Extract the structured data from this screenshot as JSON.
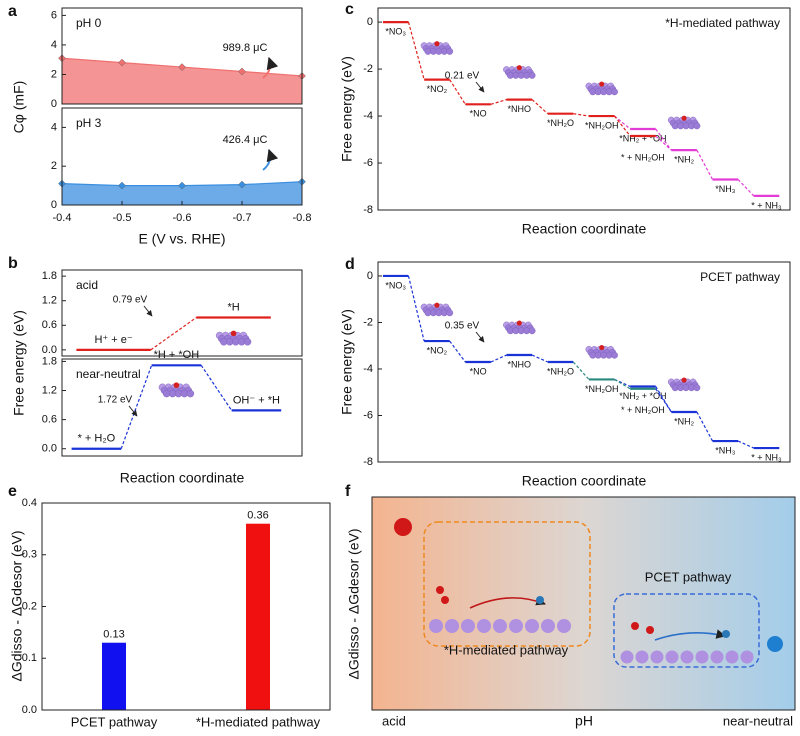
{
  "chart_data": [
    {
      "type": "area",
      "panel_label": "a",
      "title": "pH 0",
      "ylabel": "Cφ (mF)",
      "x": [
        -0.4,
        -0.5,
        -0.6,
        -0.7,
        -0.8
      ],
      "values": [
        3.1,
        2.8,
        2.5,
        2.2,
        1.9
      ],
      "color": "#f07070",
      "xlim": [
        -0.4,
        -0.8
      ],
      "ylim": [
        0,
        6.5
      ],
      "yticks": [
        0,
        2,
        4,
        6
      ],
      "annotation": "989.8 μC"
    },
    {
      "type": "area",
      "title": "pH 3",
      "xlabel": "E (V vs. RHE)",
      "x": [
        -0.4,
        -0.5,
        -0.6,
        -0.7,
        -0.8
      ],
      "values": [
        1.1,
        1.0,
        1.0,
        1.05,
        1.2
      ],
      "color": "#3b8fe0",
      "xlim": [
        -0.4,
        -0.8
      ],
      "xticks": [
        -0.4,
        -0.5,
        -0.6,
        -0.7,
        -0.8
      ],
      "ylim": [
        0,
        5
      ],
      "yticks": [
        0,
        2,
        4
      ],
      "annotation": "426.4 μC"
    },
    {
      "type": "energy",
      "panel_label": "b",
      "title": "acid",
      "ylabel": "Free energy (eV)",
      "ylim": [
        -0.15,
        1.95
      ],
      "yticks": [
        {
          "value": 0,
          "label": "0.0"
        },
        0.6,
        1.2,
        1.8
      ],
      "annotation": "0.79 eV",
      "steps": [
        [
          {
            "label": "H⁺ + e⁻",
            "value": 0,
            "color": "#e0201c"
          }
        ],
        [
          {
            "label": "*H",
            "value": 0.79,
            "color": "#e0201c"
          }
        ]
      ]
    },
    {
      "type": "energy",
      "title": "near-neutral",
      "xlabel": "Reaction coordinate",
      "ylim": [
        -0.15,
        1.85
      ],
      "yticks": [
        {
          "value": 0,
          "label": "0.0"
        },
        0.6,
        1.2,
        1.8
      ],
      "annotation": "1.72 eV",
      "steps": [
        [
          {
            "label": "* + H₂O",
            "value": 0,
            "color": "#1a33d6"
          }
        ],
        [
          {
            "label": "*H + *OH",
            "value": 1.72,
            "color": "#1a33d6"
          }
        ],
        [
          {
            "label": "OH⁻ + *H",
            "value": 0.79,
            "color": "#1a33d6"
          }
        ]
      ]
    },
    {
      "type": "energy",
      "panel_label": "c",
      "title": "*H-mediated pathway",
      "ylabel": "Free energy (eV)",
      "xlabel": "Reaction coordinate",
      "ylim": [
        -8,
        0.6
      ],
      "yticks": [
        0,
        -2,
        -4,
        -6,
        -8
      ],
      "annotation": "0.21 eV",
      "steps": [
        [
          {
            "label": "*NO₃",
            "value": 0,
            "color": "#e0201c"
          }
        ],
        [
          {
            "label": "*NO₂",
            "value": -2.45,
            "color": "#e0201c"
          }
        ],
        [
          {
            "label": "*NO",
            "value": -3.5,
            "color": "#e0201c"
          }
        ],
        [
          {
            "label": "*NHO",
            "value": -3.3,
            "color": "#e0201c"
          }
        ],
        [
          {
            "label": "*NH₂O",
            "value": -3.9,
            "color": "#e0201c"
          }
        ],
        [
          {
            "label": "*NH₂OH",
            "value": -4.0,
            "color": "#e0201c"
          }
        ],
        [
          {
            "label": "*NH₂ + *OH",
            "value": -4.55,
            "color": "#e33bd6"
          },
          {
            "label": "* + NH₂OH",
            "value": -4.85,
            "color": "#e0201c"
          }
        ],
        [
          {
            "label": "*NH₂",
            "value": -5.45,
            "color": "#e33bd6"
          }
        ],
        [
          {
            "label": "*NH₃",
            "value": -6.7,
            "color": "#e33bd6"
          }
        ],
        [
          {
            "label": "* + NH₃",
            "value": -7.4,
            "color": "#e33bd6"
          }
        ]
      ]
    },
    {
      "type": "energy",
      "panel_label": "d",
      "title": "PCET pathway",
      "ylabel": "Free energy (eV)",
      "xlabel": "Reaction coordinate",
      "ylim": [
        -8,
        0.6
      ],
      "yticks": [
        0,
        -2,
        -4,
        -6,
        -8
      ],
      "annotation": "0.35 eV",
      "steps": [
        [
          {
            "label": "*NO₃",
            "value": 0,
            "color": "#1a33d6"
          }
        ],
        [
          {
            "label": "*NO₂",
            "value": -2.8,
            "color": "#1a33d6"
          }
        ],
        [
          {
            "label": "*NO",
            "value": -3.7,
            "color": "#1a33d6"
          }
        ],
        [
          {
            "label": "*NHO",
            "value": -3.4,
            "color": "#1a33d6"
          }
        ],
        [
          {
            "label": "*NH₂O",
            "value": -3.7,
            "color": "#1a33d6"
          }
        ],
        [
          {
            "label": "*NH₂OH",
            "value": -4.45,
            "color": "#2a8a80"
          }
        ],
        [
          {
            "label": "*NH₂ + *OH",
            "value": -4.75,
            "color": "#1a33d6"
          },
          {
            "label": "* + NH₂OH",
            "value": -4.85,
            "color": "#2a8a80"
          }
        ],
        [
          {
            "label": "*NH₂",
            "value": -5.85,
            "color": "#1a33d6"
          }
        ],
        [
          {
            "label": "*NH₃",
            "value": -7.1,
            "color": "#1a33d6"
          }
        ],
        [
          {
            "label": "* + NH₃",
            "value": -7.4,
            "color": "#1a33d6"
          }
        ]
      ]
    },
    {
      "type": "bar",
      "panel_label": "e",
      "ylabel": "ΔGdisso - ΔGdesor (eV)",
      "categories": [
        "PCET pathway",
        "*H-mediated pathway"
      ],
      "values": [
        0.13,
        0.36
      ],
      "colors": [
        "#1010f0",
        "#f01010"
      ],
      "ylim": [
        0,
        0.4
      ],
      "yticks": [
        {
          "value": 0,
          "label": "0.0"
        },
        0.1,
        0.2,
        0.3,
        0.4
      ]
    },
    {
      "type": "scheme",
      "panel_label": "f",
      "ylabel": "ΔGdisso - ΔGdesor (eV)",
      "xlabel": "pH",
      "x_start": "acid",
      "x_end": "near-neutral",
      "pathways": [
        "*H-mediated pathway",
        "PCET pathway"
      ]
    }
  ]
}
